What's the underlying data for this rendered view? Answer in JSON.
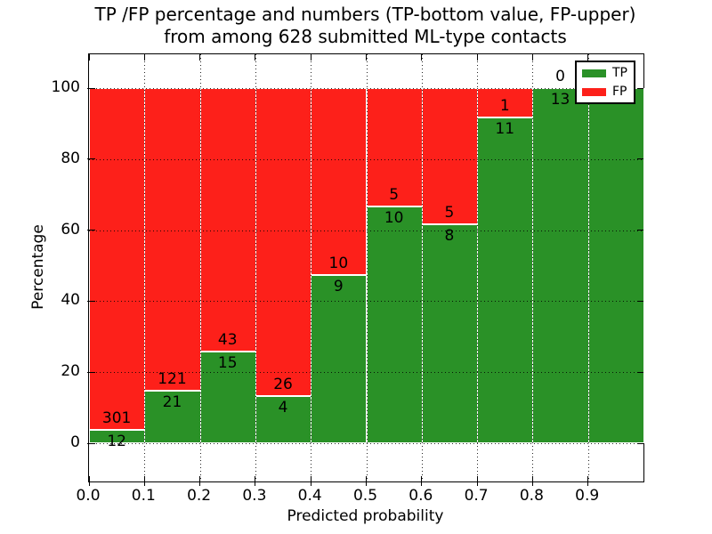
{
  "figure": {
    "title_line1": "TP /FP percentage and numbers (TP-bottom value, FP-upper)",
    "title_line2": "from among 628 submitted ML-type contacts",
    "background": "#ffffff"
  },
  "axes": {
    "x_label": "Predicted probability",
    "y_label": "Percentage",
    "x_tick_labels": [
      "0.0",
      "0.1",
      "0.2",
      "0.3",
      "0.4",
      "0.5",
      "0.6",
      "0.7",
      "0.8",
      "0.9"
    ],
    "y_tick_labels": [
      "0",
      "20",
      "40",
      "60",
      "80",
      "100"
    ],
    "y_tick_values": [
      0,
      20,
      40,
      60,
      80,
      100
    ]
  },
  "legend": {
    "entries": [
      {
        "label": "TP",
        "color": "#2a9127"
      },
      {
        "label": "FP",
        "color": "#fd201a"
      }
    ]
  },
  "colors": {
    "tp_green": "#2a9127",
    "fp_red": "#fd201a",
    "grid": "#000000",
    "bar_edge": "#ffffff"
  },
  "chart_data": {
    "type": "bar",
    "stacked": true,
    "normalized_to_percent": true,
    "title": "TP /FP percentage and numbers (TP-bottom value, FP-upper) from among 628 submitted ML-type contacts",
    "xlabel": "Predicted probability",
    "ylabel": "Percentage",
    "x_bin_edges": [
      0.0,
      0.1,
      0.2,
      0.3,
      0.4,
      0.5,
      0.6,
      0.7,
      0.8,
      0.9,
      1.0
    ],
    "categories": [
      "0.0-0.1",
      "0.1-0.2",
      "0.2-0.3",
      "0.3-0.4",
      "0.4-0.5",
      "0.5-0.6",
      "0.6-0.7",
      "0.7-0.8",
      "0.8-0.9",
      "0.9-1.0"
    ],
    "series": [
      {
        "name": "TP",
        "color": "#2a9127",
        "position": "bottom",
        "values": [
          12,
          21,
          15,
          4,
          9,
          10,
          8,
          11,
          13,
          13
        ]
      },
      {
        "name": "FP",
        "color": "#fd201a",
        "position": "top",
        "values": [
          301,
          121,
          43,
          26,
          10,
          5,
          5,
          1,
          0,
          0
        ]
      }
    ],
    "tp_percent_of_bin": [
      3.83,
      14.79,
      25.86,
      13.33,
      47.37,
      66.67,
      61.54,
      91.67,
      100.0,
      100.0
    ],
    "total_contacts": 628,
    "ylim": [
      -11,
      110
    ],
    "xlim": [
      0.0,
      1.0
    ],
    "y_ticks": [
      0,
      20,
      40,
      60,
      80,
      100
    ],
    "x_ticks": [
      0.0,
      0.1,
      0.2,
      0.3,
      0.4,
      0.5,
      0.6,
      0.7,
      0.8,
      0.9
    ],
    "grid": true,
    "grid_style": "dotted",
    "legend_position": "upper right",
    "bar_value_labels": "TP number below segment boundary, FP number above segment boundary"
  }
}
